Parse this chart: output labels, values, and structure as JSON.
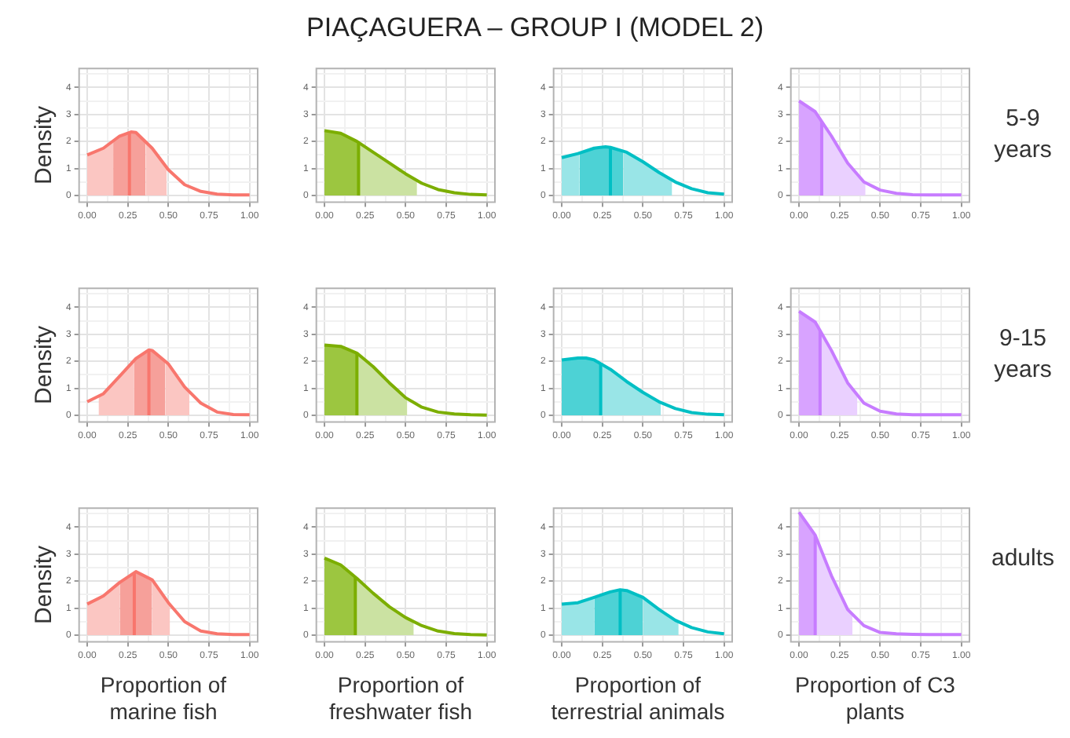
{
  "chart_data": [
    {
      "type": "line",
      "annotations": [
        "PIAÇAGUERA – GROUP I (MODEL 2)"
      ],
      "ylabel": "Density",
      "xlim": [
        -0.05,
        1.05
      ],
      "ylim": [
        -0.25,
        4.7
      ],
      "xticks": [
        {
          "value": 0,
          "label": "0.00"
        },
        {
          "value": 0.125,
          "label": null
        },
        {
          "value": 0.25,
          "label": "0.25"
        },
        {
          "value": 0.375,
          "label": null
        },
        {
          "value": 0.5,
          "label": "0.50"
        },
        {
          "value": 0.625,
          "label": null
        },
        {
          "value": 0.75,
          "label": "0.75"
        },
        {
          "value": 0.875,
          "label": null
        },
        {
          "value": 1,
          "label": "1.00"
        }
      ],
      "yticks": [
        0,
        {
          "value": 0.5,
          "label": null
        },
        1,
        {
          "value": 1.5,
          "label": null
        },
        2,
        {
          "value": 2.5,
          "label": null
        },
        3,
        {
          "value": 3.5,
          "label": null
        },
        4,
        {
          "value": 4.5,
          "label": null
        }
      ],
      "grid": true,
      "ref_lines": [
        {
          "axis": "x",
          "value": 0.26,
          "color": "#f8766d"
        }
      ],
      "series": [
        {
          "type": "area",
          "color": "#fbc6c2",
          "x": [
            0,
            0.1,
            0.16
          ],
          "values": [
            1.5,
            1.75,
            2.0
          ]
        },
        {
          "type": "area",
          "color": "#f6a09a",
          "x": [
            0.16,
            0.2,
            0.27,
            0.3,
            0.36
          ],
          "values": [
            2.0,
            2.2,
            2.35,
            2.33,
            2.0
          ]
        },
        {
          "type": "area",
          "color": "#fbc6c2",
          "x": [
            0.36,
            0.4,
            0.49
          ],
          "values": [
            2.0,
            1.75,
            1.03
          ]
        },
        {
          "type": "line",
          "color": "#f8766d",
          "x": [
            0,
            0.1,
            0.2,
            0.27,
            0.3,
            0.4,
            0.5,
            0.6,
            0.7,
            0.8,
            0.9,
            1
          ],
          "values": [
            1.5,
            1.75,
            2.2,
            2.35,
            2.33,
            1.75,
            0.95,
            0.4,
            0.15,
            0.05,
            0.02,
            0.02
          ]
        }
      ]
    },
    {
      "type": "line",
      "xlim": [
        -0.05,
        1.05
      ],
      "ylim": [
        -0.25,
        4.7
      ],
      "xticks": [
        {
          "value": 0,
          "label": "0.00"
        },
        {
          "value": 0.125,
          "label": null
        },
        {
          "value": 0.25,
          "label": "0.25"
        },
        {
          "value": 0.375,
          "label": null
        },
        {
          "value": 0.5,
          "label": "0.50"
        },
        {
          "value": 0.625,
          "label": null
        },
        {
          "value": 0.75,
          "label": "0.75"
        },
        {
          "value": 0.875,
          "label": null
        },
        {
          "value": 1,
          "label": "1.00"
        }
      ],
      "yticks": [
        0,
        {
          "value": 0.5,
          "label": null
        },
        1,
        {
          "value": 1.5,
          "label": null
        },
        2,
        {
          "value": 2.5,
          "label": null
        },
        3,
        {
          "value": 3.5,
          "label": null
        },
        4,
        {
          "value": 4.5,
          "label": null
        }
      ],
      "grid": true,
      "ref_lines": [
        {
          "axis": "x",
          "value": 0.21,
          "color": "#7cae00"
        }
      ],
      "series": [
        {
          "type": "area",
          "color": "#9cc640",
          "x": [
            0,
            0.1,
            0.21
          ],
          "values": [
            2.4,
            2.3,
            1.96
          ]
        },
        {
          "type": "area",
          "color": "#cbe2a2",
          "x": [
            0.21,
            0.3,
            0.4,
            0.5,
            0.57
          ],
          "values": [
            1.96,
            1.6,
            1.2,
            0.8,
            0.55
          ]
        },
        {
          "type": "line",
          "color": "#7cae00",
          "x": [
            0,
            0.1,
            0.2,
            0.3,
            0.4,
            0.5,
            0.6,
            0.7,
            0.8,
            0.9,
            1
          ],
          "values": [
            2.4,
            2.3,
            2.0,
            1.6,
            1.2,
            0.8,
            0.45,
            0.22,
            0.1,
            0.04,
            0.02
          ]
        }
      ]
    },
    {
      "type": "line",
      "xlim": [
        -0.05,
        1.05
      ],
      "ylim": [
        -0.25,
        4.7
      ],
      "xticks": [
        {
          "value": 0,
          "label": "0.00"
        },
        {
          "value": 0.125,
          "label": null
        },
        {
          "value": 0.25,
          "label": "0.25"
        },
        {
          "value": 0.375,
          "label": null
        },
        {
          "value": 0.5,
          "label": "0.50"
        },
        {
          "value": 0.625,
          "label": null
        },
        {
          "value": 0.75,
          "label": "0.75"
        },
        {
          "value": 0.875,
          "label": null
        },
        {
          "value": 1,
          "label": "1.00"
        }
      ],
      "yticks": [
        0,
        {
          "value": 0.5,
          "label": null
        },
        1,
        {
          "value": 1.5,
          "label": null
        },
        2,
        {
          "value": 2.5,
          "label": null
        },
        3,
        {
          "value": 3.5,
          "label": null
        },
        4,
        {
          "value": 4.5,
          "label": null
        }
      ],
      "grid": true,
      "ref_lines": [
        {
          "axis": "x",
          "value": 0.3,
          "color": "#00bfc4"
        }
      ],
      "series": [
        {
          "type": "area",
          "color": "#99e5e7",
          "x": [
            0,
            0.1,
            0.11
          ],
          "values": [
            1.4,
            1.55,
            1.57
          ]
        },
        {
          "type": "area",
          "color": "#4dd2d5",
          "x": [
            0.11,
            0.2,
            0.27,
            0.3,
            0.38
          ],
          "values": [
            1.57,
            1.75,
            1.8,
            1.78,
            1.64
          ]
        },
        {
          "type": "area",
          "color": "#99e5e7",
          "x": [
            0.38,
            0.4,
            0.5,
            0.6,
            0.68
          ],
          "values": [
            1.64,
            1.6,
            1.25,
            0.85,
            0.57
          ]
        },
        {
          "type": "line",
          "color": "#00bfc4",
          "x": [
            0,
            0.1,
            0.2,
            0.27,
            0.3,
            0.4,
            0.5,
            0.6,
            0.7,
            0.8,
            0.9,
            1
          ],
          "values": [
            1.4,
            1.55,
            1.75,
            1.8,
            1.78,
            1.6,
            1.25,
            0.85,
            0.5,
            0.25,
            0.1,
            0.05
          ]
        }
      ]
    },
    {
      "type": "line",
      "annotations": [
        "5-9 years"
      ],
      "xlim": [
        -0.05,
        1.05
      ],
      "ylim": [
        -0.25,
        4.7
      ],
      "xticks": [
        {
          "value": 0,
          "label": "0.00"
        },
        {
          "value": 0.125,
          "label": null
        },
        {
          "value": 0.25,
          "label": "0.25"
        },
        {
          "value": 0.375,
          "label": null
        },
        {
          "value": 0.5,
          "label": "0.50"
        },
        {
          "value": 0.625,
          "label": null
        },
        {
          "value": 0.75,
          "label": "0.75"
        },
        {
          "value": 0.875,
          "label": null
        },
        {
          "value": 1,
          "label": "1.00"
        }
      ],
      "yticks": [
        0,
        {
          "value": 0.5,
          "label": null
        },
        1,
        {
          "value": 1.5,
          "label": null
        },
        2,
        {
          "value": 2.5,
          "label": null
        },
        3,
        {
          "value": 3.5,
          "label": null
        },
        4,
        {
          "value": 4.5,
          "label": null
        }
      ],
      "grid": true,
      "ref_lines": [
        {
          "axis": "x",
          "value": 0.14,
          "color": "#c77cff"
        }
      ],
      "series": [
        {
          "type": "area",
          "color": "#d8a3ff",
          "x": [
            0,
            0.1,
            0.14
          ],
          "values": [
            3.5,
            3.1,
            2.74
          ]
        },
        {
          "type": "area",
          "color": "#ead0ff",
          "x": [
            0.14,
            0.2,
            0.3,
            0.41
          ],
          "values": [
            2.74,
            2.2,
            1.2,
            0.47
          ]
        },
        {
          "type": "line",
          "color": "#c77cff",
          "x": [
            0,
            0.1,
            0.2,
            0.3,
            0.4,
            0.5,
            0.6,
            0.7,
            0.8,
            0.9,
            1
          ],
          "values": [
            3.5,
            3.1,
            2.2,
            1.2,
            0.5,
            0.2,
            0.08,
            0.03,
            0.02,
            0.02,
            0.02
          ]
        }
      ]
    },
    {
      "type": "line",
      "ylabel": "Density",
      "xlim": [
        -0.05,
        1.05
      ],
      "ylim": [
        -0.25,
        4.7
      ],
      "xticks": [
        {
          "value": 0,
          "label": "0.00"
        },
        {
          "value": 0.125,
          "label": null
        },
        {
          "value": 0.25,
          "label": "0.25"
        },
        {
          "value": 0.375,
          "label": null
        },
        {
          "value": 0.5,
          "label": "0.50"
        },
        {
          "value": 0.625,
          "label": null
        },
        {
          "value": 0.75,
          "label": "0.75"
        },
        {
          "value": 0.875,
          "label": null
        },
        {
          "value": 1,
          "label": "1.00"
        }
      ],
      "yticks": [
        0,
        {
          "value": 0.5,
          "label": null
        },
        1,
        {
          "value": 1.5,
          "label": null
        },
        2,
        {
          "value": 2.5,
          "label": null
        },
        3,
        {
          "value": 3.5,
          "label": null
        },
        4,
        {
          "value": 4.5,
          "label": null
        }
      ],
      "grid": true,
      "ref_lines": [
        {
          "axis": "x",
          "value": 0.38,
          "color": "#f8766d"
        }
      ],
      "series": [
        {
          "type": "area",
          "color": "#fbc6c2",
          "x": [
            0.07,
            0.1,
            0.2,
            0.29
          ],
          "values": [
            0.7,
            0.8,
            1.45,
            2.05
          ]
        },
        {
          "type": "area",
          "color": "#f6a09a",
          "x": [
            0.29,
            0.3,
            0.38,
            0.4,
            0.48
          ],
          "values": [
            2.05,
            2.1,
            2.42,
            2.4,
            2.0
          ]
        },
        {
          "type": "area",
          "color": "#fbc6c2",
          "x": [
            0.48,
            0.5,
            0.6,
            0.63
          ],
          "values": [
            2.0,
            1.9,
            1.05,
            0.87
          ]
        },
        {
          "type": "line",
          "color": "#f8766d",
          "x": [
            0,
            0.1,
            0.2,
            0.3,
            0.38,
            0.4,
            0.5,
            0.6,
            0.7,
            0.8,
            0.9,
            1
          ],
          "values": [
            0.5,
            0.8,
            1.45,
            2.1,
            2.42,
            2.4,
            1.9,
            1.05,
            0.45,
            0.12,
            0.03,
            0.02
          ]
        }
      ]
    },
    {
      "type": "line",
      "xlim": [
        -0.05,
        1.05
      ],
      "ylim": [
        -0.25,
        4.7
      ],
      "xticks": [
        {
          "value": 0,
          "label": "0.00"
        },
        {
          "value": 0.125,
          "label": null
        },
        {
          "value": 0.25,
          "label": "0.25"
        },
        {
          "value": 0.375,
          "label": null
        },
        {
          "value": 0.5,
          "label": "0.50"
        },
        {
          "value": 0.625,
          "label": null
        },
        {
          "value": 0.75,
          "label": "0.75"
        },
        {
          "value": 0.875,
          "label": null
        },
        {
          "value": 1,
          "label": "1.00"
        }
      ],
      "yticks": [
        0,
        {
          "value": 0.5,
          "label": null
        },
        1,
        {
          "value": 1.5,
          "label": null
        },
        2,
        {
          "value": 2.5,
          "label": null
        },
        3,
        {
          "value": 3.5,
          "label": null
        },
        4,
        {
          "value": 4.5,
          "label": null
        }
      ],
      "grid": true,
      "ref_lines": [
        {
          "axis": "x",
          "value": 0.2,
          "color": "#7cae00"
        }
      ],
      "series": [
        {
          "type": "area",
          "color": "#9cc640",
          "x": [
            0,
            0.1,
            0.2
          ],
          "values": [
            2.6,
            2.55,
            2.3
          ]
        },
        {
          "type": "area",
          "color": "#cbe2a2",
          "x": [
            0.2,
            0.3,
            0.4,
            0.5,
            0.51
          ],
          "values": [
            2.3,
            1.8,
            1.2,
            0.65,
            0.62
          ]
        },
        {
          "type": "line",
          "color": "#7cae00",
          "x": [
            0,
            0.1,
            0.2,
            0.3,
            0.4,
            0.5,
            0.6,
            0.7,
            0.8,
            0.9,
            1
          ],
          "values": [
            2.6,
            2.55,
            2.3,
            1.8,
            1.2,
            0.65,
            0.3,
            0.12,
            0.05,
            0.02,
            0.01
          ]
        }
      ]
    },
    {
      "type": "line",
      "xlim": [
        -0.05,
        1.05
      ],
      "ylim": [
        -0.25,
        4.7
      ],
      "xticks": [
        {
          "value": 0,
          "label": "0.00"
        },
        {
          "value": 0.125,
          "label": null
        },
        {
          "value": 0.25,
          "label": "0.25"
        },
        {
          "value": 0.375,
          "label": null
        },
        {
          "value": 0.5,
          "label": "0.50"
        },
        {
          "value": 0.625,
          "label": null
        },
        {
          "value": 0.75,
          "label": "0.75"
        },
        {
          "value": 0.875,
          "label": null
        },
        {
          "value": 1,
          "label": "1.00"
        }
      ],
      "yticks": [
        0,
        {
          "value": 0.5,
          "label": null
        },
        1,
        {
          "value": 1.5,
          "label": null
        },
        2,
        {
          "value": 2.5,
          "label": null
        },
        3,
        {
          "value": 3.5,
          "label": null
        },
        4,
        {
          "value": 4.5,
          "label": null
        }
      ],
      "grid": true,
      "ref_lines": [
        {
          "axis": "x",
          "value": 0.24,
          "color": "#00bfc4"
        }
      ],
      "series": [
        {
          "type": "area",
          "color": "#4dd2d5",
          "x": [
            0,
            0.1,
            0.15,
            0.2,
            0.24
          ],
          "values": [
            2.05,
            2.12,
            2.12,
            2.05,
            1.91
          ]
        },
        {
          "type": "area",
          "color": "#99e5e7",
          "x": [
            0.24,
            0.3,
            0.4,
            0.5,
            0.61
          ],
          "values": [
            1.91,
            1.7,
            1.25,
            0.85,
            0.48
          ]
        },
        {
          "type": "line",
          "color": "#00bfc4",
          "x": [
            0,
            0.1,
            0.15,
            0.2,
            0.3,
            0.4,
            0.5,
            0.6,
            0.7,
            0.8,
            0.9,
            1
          ],
          "values": [
            2.05,
            2.12,
            2.12,
            2.05,
            1.7,
            1.25,
            0.85,
            0.5,
            0.25,
            0.1,
            0.04,
            0.02
          ]
        }
      ]
    },
    {
      "type": "line",
      "annotations": [
        "9-15 years"
      ],
      "xlim": [
        -0.05,
        1.05
      ],
      "ylim": [
        -0.25,
        4.7
      ],
      "xticks": [
        {
          "value": 0,
          "label": "0.00"
        },
        {
          "value": 0.125,
          "label": null
        },
        {
          "value": 0.25,
          "label": "0.25"
        },
        {
          "value": 0.375,
          "label": null
        },
        {
          "value": 0.5,
          "label": "0.50"
        },
        {
          "value": 0.625,
          "label": null
        },
        {
          "value": 0.75,
          "label": "0.75"
        },
        {
          "value": 0.875,
          "label": null
        },
        {
          "value": 1,
          "label": "1.00"
        }
      ],
      "yticks": [
        0,
        {
          "value": 0.5,
          "label": null
        },
        1,
        {
          "value": 1.5,
          "label": null
        },
        2,
        {
          "value": 2.5,
          "label": null
        },
        3,
        {
          "value": 3.5,
          "label": null
        },
        4,
        {
          "value": 4.5,
          "label": null
        }
      ],
      "grid": true,
      "ref_lines": [
        {
          "axis": "x",
          "value": 0.13,
          "color": "#c77cff"
        }
      ],
      "series": [
        {
          "type": "area",
          "color": "#d8a3ff",
          "x": [
            0,
            0.1,
            0.13
          ],
          "values": [
            3.85,
            3.45,
            3.14
          ]
        },
        {
          "type": "area",
          "color": "#ead0ff",
          "x": [
            0.13,
            0.2,
            0.3,
            0.36
          ],
          "values": [
            3.14,
            2.4,
            1.2,
            0.75
          ]
        },
        {
          "type": "line",
          "color": "#c77cff",
          "x": [
            0,
            0.1,
            0.2,
            0.3,
            0.4,
            0.5,
            0.6,
            0.7,
            0.8,
            0.9,
            1
          ],
          "values": [
            3.85,
            3.45,
            2.4,
            1.2,
            0.45,
            0.15,
            0.05,
            0.02,
            0.02,
            0.02,
            0.02
          ]
        }
      ]
    },
    {
      "type": "line",
      "ylabel": "Density",
      "xlabel": "Proportion of marine fish",
      "xlim": [
        -0.05,
        1.05
      ],
      "ylim": [
        -0.25,
        4.7
      ],
      "xticks": [
        {
          "value": 0,
          "label": "0.00"
        },
        {
          "value": 0.125,
          "label": null
        },
        {
          "value": 0.25,
          "label": "0.25"
        },
        {
          "value": 0.375,
          "label": null
        },
        {
          "value": 0.5,
          "label": "0.50"
        },
        {
          "value": 0.625,
          "label": null
        },
        {
          "value": 0.75,
          "label": "0.75"
        },
        {
          "value": 0.875,
          "label": null
        },
        {
          "value": 1,
          "label": "1.00"
        }
      ],
      "yticks": [
        0,
        {
          "value": 0.5,
          "label": null
        },
        1,
        {
          "value": 1.5,
          "label": null
        },
        2,
        {
          "value": 2.5,
          "label": null
        },
        3,
        {
          "value": 3.5,
          "label": null
        },
        4,
        {
          "value": 4.5,
          "label": null
        }
      ],
      "grid": true,
      "ref_lines": [
        {
          "axis": "x",
          "value": 0.29,
          "color": "#f8766d"
        }
      ],
      "series": [
        {
          "type": "area",
          "color": "#fbc6c2",
          "x": [
            0,
            0.1,
            0.2
          ],
          "values": [
            1.15,
            1.45,
            1.95
          ]
        },
        {
          "type": "area",
          "color": "#f6a09a",
          "x": [
            0.2,
            0.3,
            0.4
          ],
          "values": [
            1.95,
            2.35,
            2.05
          ]
        },
        {
          "type": "area",
          "color": "#fbc6c2",
          "x": [
            0.4,
            0.5,
            0.51
          ],
          "values": [
            2.05,
            1.2,
            1.13
          ]
        },
        {
          "type": "line",
          "color": "#f8766d",
          "x": [
            0,
            0.1,
            0.2,
            0.3,
            0.4,
            0.5,
            0.6,
            0.7,
            0.8,
            0.9,
            1
          ],
          "values": [
            1.15,
            1.45,
            1.95,
            2.35,
            2.05,
            1.2,
            0.5,
            0.15,
            0.05,
            0.02,
            0.02
          ]
        }
      ]
    },
    {
      "type": "line",
      "xlabel": "Proportion of freshwater fish",
      "xlim": [
        -0.05,
        1.05
      ],
      "ylim": [
        -0.25,
        4.7
      ],
      "xticks": [
        {
          "value": 0,
          "label": "0.00"
        },
        {
          "value": 0.125,
          "label": null
        },
        {
          "value": 0.25,
          "label": "0.25"
        },
        {
          "value": 0.375,
          "label": null
        },
        {
          "value": 0.5,
          "label": "0.50"
        },
        {
          "value": 0.625,
          "label": null
        },
        {
          "value": 0.75,
          "label": "0.75"
        },
        {
          "value": 0.875,
          "label": null
        },
        {
          "value": 1,
          "label": "1.00"
        }
      ],
      "yticks": [
        0,
        {
          "value": 0.5,
          "label": null
        },
        1,
        {
          "value": 1.5,
          "label": null
        },
        2,
        {
          "value": 2.5,
          "label": null
        },
        3,
        {
          "value": 3.5,
          "label": null
        },
        4,
        {
          "value": 4.5,
          "label": null
        }
      ],
      "grid": true,
      "ref_lines": [
        {
          "axis": "x",
          "value": 0.19,
          "color": "#7cae00"
        }
      ],
      "series": [
        {
          "type": "area",
          "color": "#9cc640",
          "x": [
            0,
            0.1,
            0.19
          ],
          "values": [
            2.85,
            2.6,
            2.15
          ]
        },
        {
          "type": "area",
          "color": "#cbe2a2",
          "x": [
            0.19,
            0.2,
            0.3,
            0.4,
            0.5,
            0.55
          ],
          "values": [
            2.15,
            2.1,
            1.55,
            1.05,
            0.65,
            0.5
          ]
        },
        {
          "type": "line",
          "color": "#7cae00",
          "x": [
            0,
            0.1,
            0.2,
            0.3,
            0.4,
            0.5,
            0.6,
            0.7,
            0.8,
            0.9,
            1
          ],
          "values": [
            2.85,
            2.6,
            2.1,
            1.55,
            1.05,
            0.65,
            0.35,
            0.15,
            0.06,
            0.02,
            0.01
          ]
        }
      ]
    },
    {
      "type": "line",
      "xlabel": "Proportion of terrestrial animals",
      "xlim": [
        -0.05,
        1.05
      ],
      "ylim": [
        -0.25,
        4.7
      ],
      "xticks": [
        {
          "value": 0,
          "label": "0.00"
        },
        {
          "value": 0.125,
          "label": null
        },
        {
          "value": 0.25,
          "label": "0.25"
        },
        {
          "value": 0.375,
          "label": null
        },
        {
          "value": 0.5,
          "label": "0.50"
        },
        {
          "value": 0.625,
          "label": null
        },
        {
          "value": 0.75,
          "label": "0.75"
        },
        {
          "value": 0.875,
          "label": null
        },
        {
          "value": 1,
          "label": "1.00"
        }
      ],
      "yticks": [
        0,
        {
          "value": 0.5,
          "label": null
        },
        1,
        {
          "value": 1.5,
          "label": null
        },
        2,
        {
          "value": 2.5,
          "label": null
        },
        3,
        {
          "value": 3.5,
          "label": null
        },
        4,
        {
          "value": 4.5,
          "label": null
        }
      ],
      "grid": true,
      "ref_lines": [
        {
          "axis": "x",
          "value": 0.36,
          "color": "#00bfc4"
        }
      ],
      "series": [
        {
          "type": "area",
          "color": "#99e5e7",
          "x": [
            0,
            0.1,
            0.2
          ],
          "values": [
            1.15,
            1.2,
            1.4
          ]
        },
        {
          "type": "area",
          "color": "#4dd2d5",
          "x": [
            0.2,
            0.3,
            0.36,
            0.4,
            0.5
          ],
          "values": [
            1.4,
            1.6,
            1.68,
            1.65,
            1.4
          ]
        },
        {
          "type": "area",
          "color": "#99e5e7",
          "x": [
            0.5,
            0.6,
            0.7,
            0.72
          ],
          "values": [
            1.4,
            0.95,
            0.55,
            0.5
          ]
        },
        {
          "type": "line",
          "color": "#00bfc4",
          "x": [
            0,
            0.1,
            0.2,
            0.3,
            0.36,
            0.4,
            0.5,
            0.6,
            0.7,
            0.8,
            0.9,
            1
          ],
          "values": [
            1.15,
            1.2,
            1.4,
            1.6,
            1.68,
            1.65,
            1.4,
            0.95,
            0.55,
            0.28,
            0.12,
            0.05
          ]
        }
      ]
    },
    {
      "type": "line",
      "xlabel": "Proportion of C3 plants",
      "annotations": [
        "adults"
      ],
      "xlim": [
        -0.05,
        1.05
      ],
      "ylim": [
        -0.25,
        4.7
      ],
      "xticks": [
        {
          "value": 0,
          "label": "0.00"
        },
        {
          "value": 0.125,
          "label": null
        },
        {
          "value": 0.25,
          "label": "0.25"
        },
        {
          "value": 0.375,
          "label": null
        },
        {
          "value": 0.5,
          "label": "0.50"
        },
        {
          "value": 0.625,
          "label": null
        },
        {
          "value": 0.75,
          "label": "0.75"
        },
        {
          "value": 0.875,
          "label": null
        },
        {
          "value": 1,
          "label": "1.00"
        }
      ],
      "yticks": [
        0,
        {
          "value": 0.5,
          "label": null
        },
        1,
        {
          "value": 1.5,
          "label": null
        },
        2,
        {
          "value": 2.5,
          "label": null
        },
        3,
        {
          "value": 3.5,
          "label": null
        },
        4,
        {
          "value": 4.5,
          "label": null
        }
      ],
      "grid": true,
      "ref_lines": [
        {
          "axis": "x",
          "value": 0.1,
          "color": "#c77cff"
        }
      ],
      "series": [
        {
          "type": "area",
          "color": "#d8a3ff",
          "x": [
            0,
            0.1
          ],
          "values": [
            4.55,
            3.7
          ]
        },
        {
          "type": "area",
          "color": "#ead0ff",
          "x": [
            0.1,
            0.2,
            0.3,
            0.33
          ],
          "values": [
            3.7,
            2.2,
            0.95,
            0.77
          ]
        },
        {
          "type": "line",
          "color": "#c77cff",
          "x": [
            0,
            0.1,
            0.2,
            0.3,
            0.4,
            0.5,
            0.6,
            0.7,
            0.8,
            0.9,
            1
          ],
          "values": [
            4.55,
            3.7,
            2.2,
            0.95,
            0.35,
            0.1,
            0.05,
            0.03,
            0.02,
            0.02,
            0.02
          ]
        }
      ]
    }
  ]
}
